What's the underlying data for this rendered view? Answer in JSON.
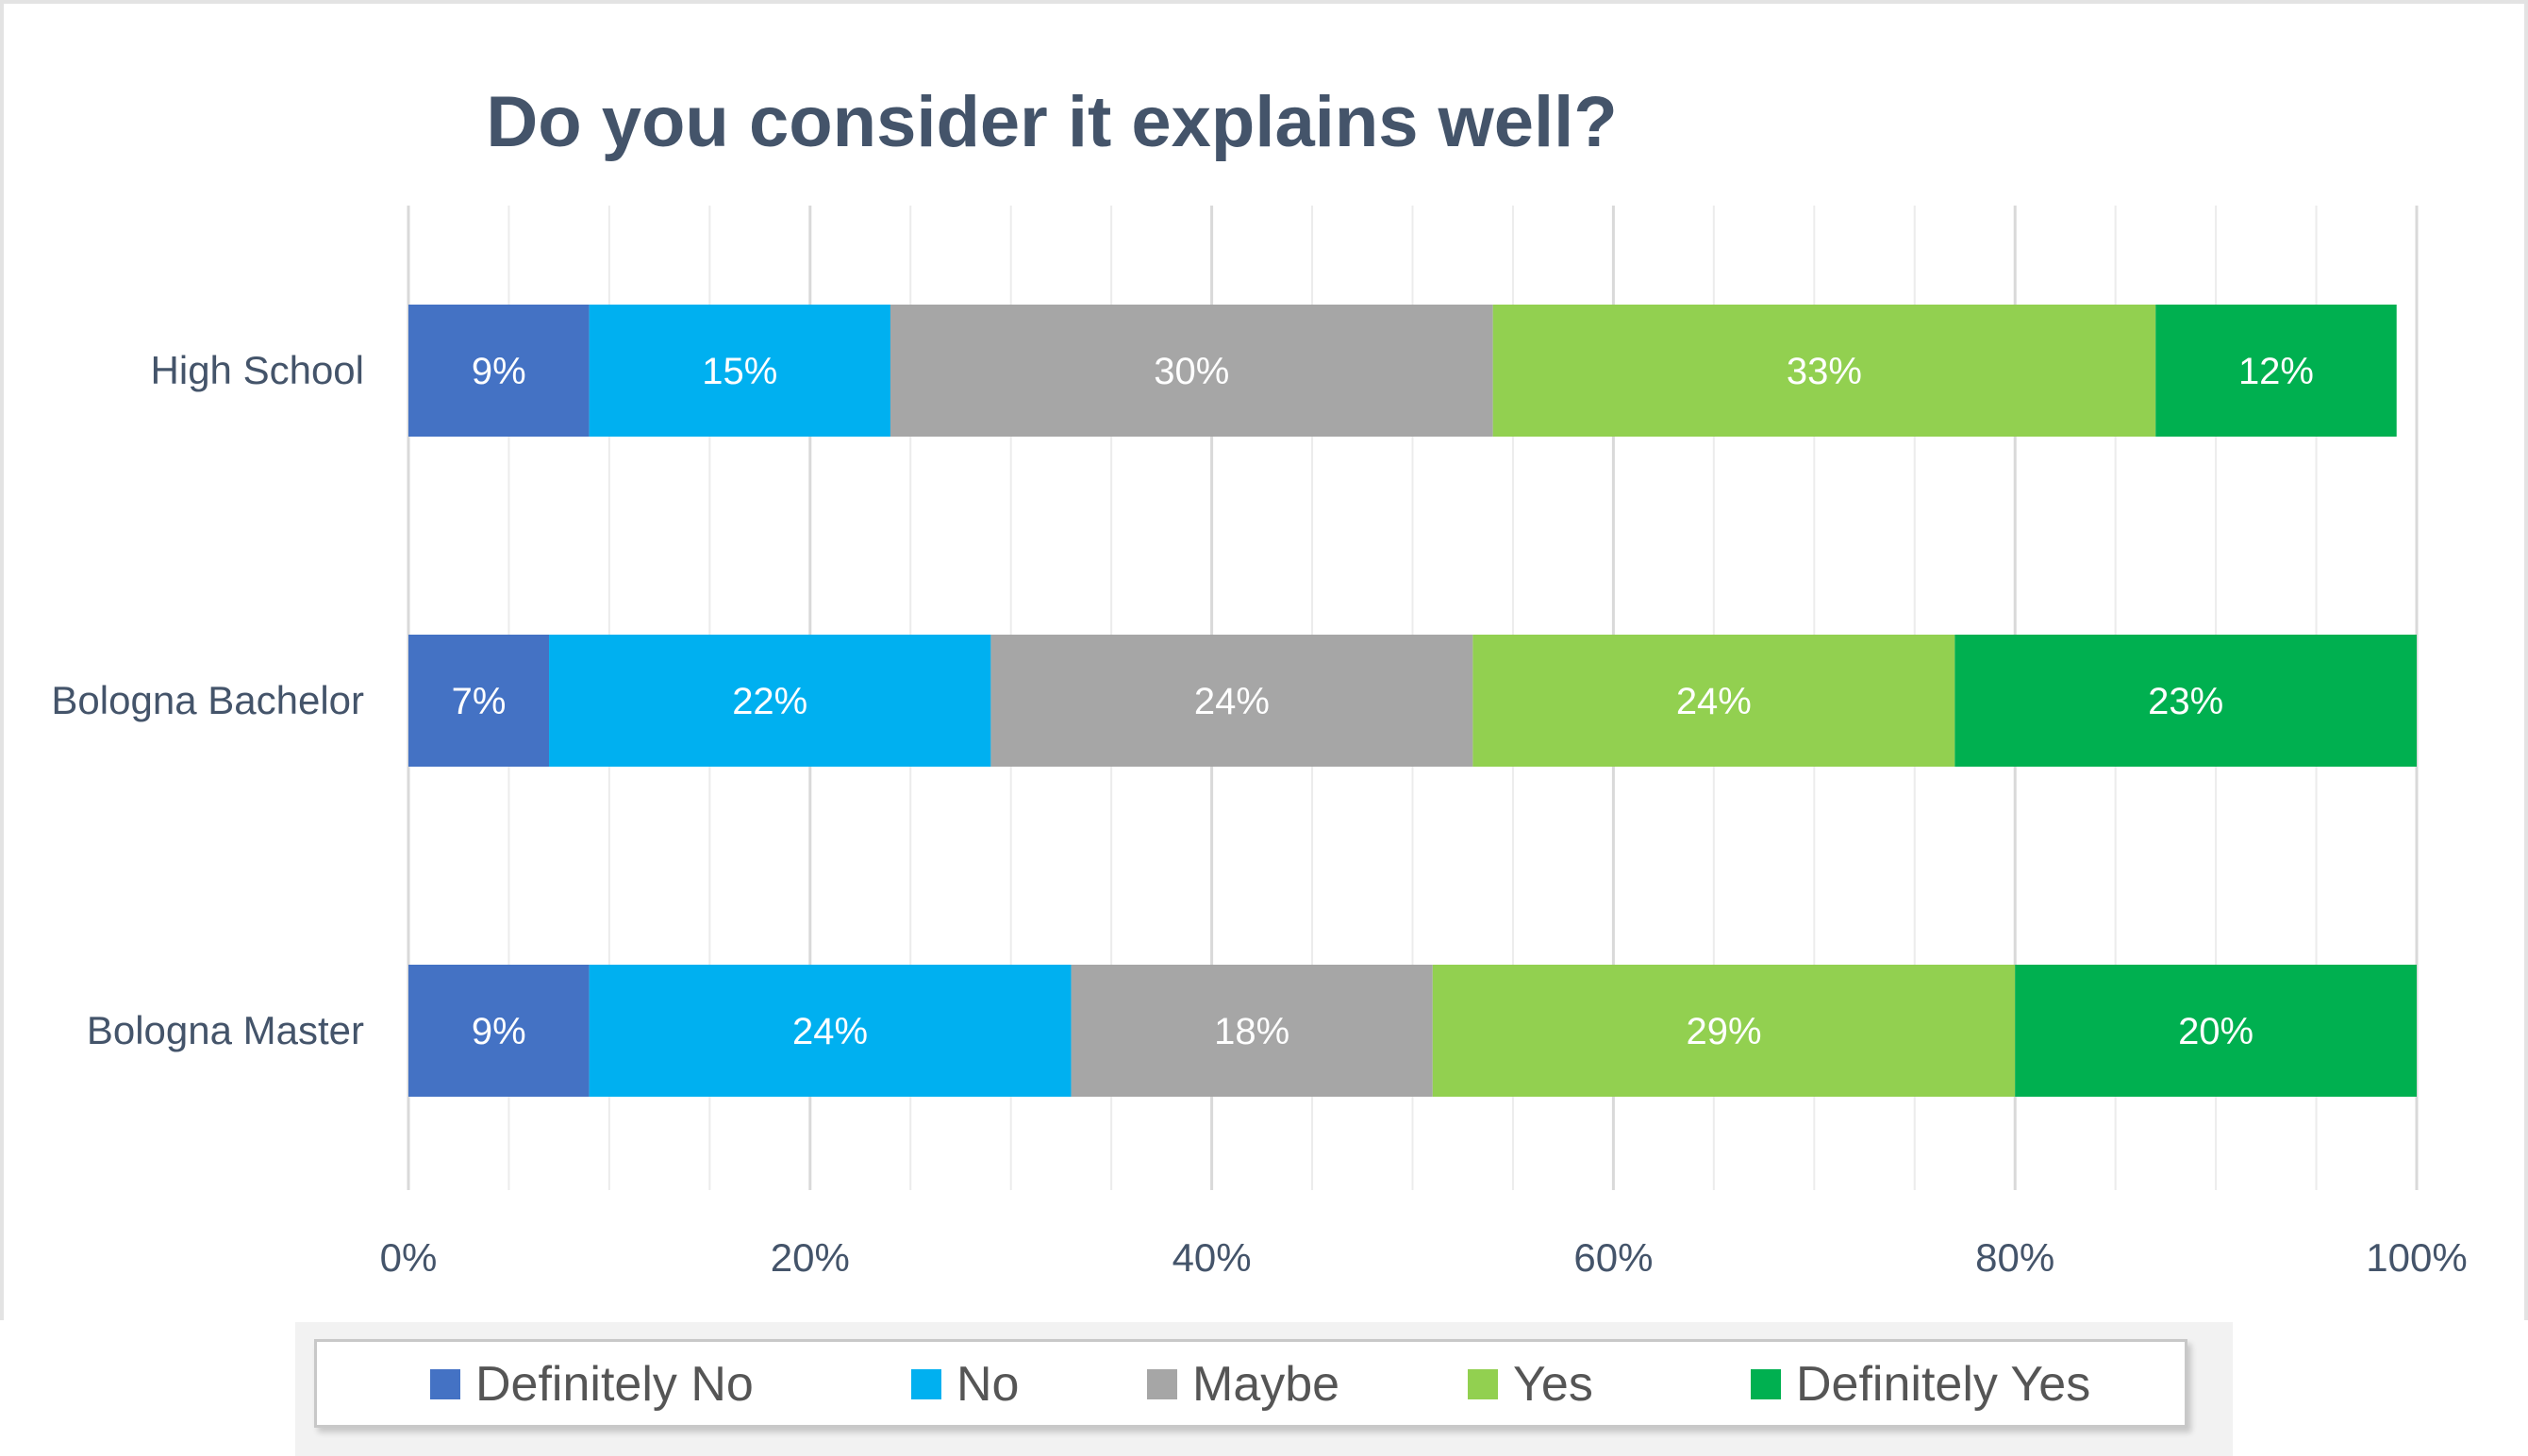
{
  "chart_data": {
    "type": "bar",
    "orientation": "horizontal",
    "stacked": true,
    "percent": true,
    "title": "Do you consider it explains well?",
    "categories": [
      "High School",
      "Bologna Bachelor",
      "Bologna Master"
    ],
    "series": [
      {
        "name": "Definitely No",
        "color": "#4472C4",
        "values": [
          9,
          7,
          9
        ],
        "labels": [
          "9%",
          "7%",
          "9%"
        ]
      },
      {
        "name": "No",
        "color": "#00B0F0",
        "values": [
          15,
          22,
          24
        ],
        "labels": [
          "15%",
          "22%",
          "24%"
        ]
      },
      {
        "name": "Maybe",
        "color": "#A6A6A6",
        "values": [
          30,
          24,
          18
        ],
        "labels": [
          "30%",
          "24%",
          "18%"
        ]
      },
      {
        "name": "Yes",
        "color": "#92D050",
        "values": [
          33,
          24,
          29
        ],
        "labels": [
          "33%",
          "24%",
          "29%"
        ]
      },
      {
        "name": "Definitely Yes",
        "color": "#00B050",
        "values": [
          12,
          23,
          20
        ],
        "labels": [
          "12%",
          "23%",
          "20%"
        ]
      }
    ],
    "xlim": [
      0,
      100
    ],
    "xticks": [
      "0%",
      "20%",
      "40%",
      "60%",
      "80%",
      "100%"
    ],
    "grid": true,
    "legend": "bottom"
  }
}
